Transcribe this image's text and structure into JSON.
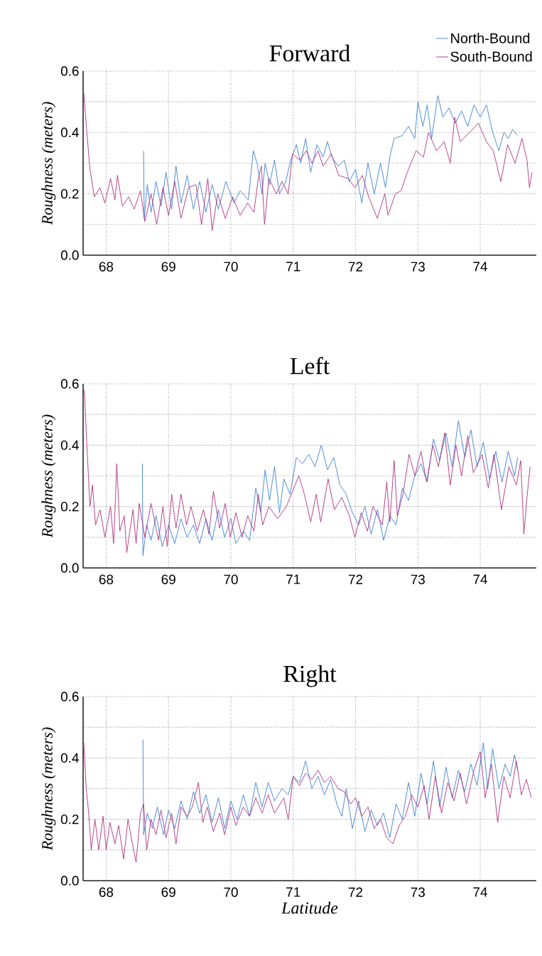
{
  "chart_data": [
    {
      "type": "line",
      "title": "Forward",
      "ylabel": "Roughness (meters)",
      "xlim": [
        67.63,
        74.9
      ],
      "ylim": [
        0,
        0.6
      ],
      "xticks": [
        68,
        69,
        70,
        71,
        72,
        73,
        74
      ],
      "yticks": [
        {
          "value": 0,
          "label": "0.0"
        },
        {
          "value": 0.1,
          "label": null
        },
        0.2,
        {
          "value": 0.3,
          "label": null
        },
        0.4,
        {
          "value": 0.5,
          "label": null
        },
        0.6
      ],
      "grid": true,
      "legend": "top right",
      "series": [
        {
          "name": "North-Bound",
          "color": "#3a7fd5",
          "x": [
            68.6,
            68.61,
            68.66,
            68.72,
            68.8,
            68.88,
            68.96,
            69.05,
            69.12,
            69.2,
            69.3,
            69.4,
            69.5,
            69.6,
            69.7,
            69.8,
            69.92,
            70.05,
            70.15,
            70.28,
            70.36,
            70.42,
            70.5,
            70.55,
            70.62,
            70.7,
            70.78,
            70.88,
            70.96,
            71.05,
            71.12,
            71.2,
            71.28,
            71.38,
            71.48,
            71.55,
            71.62,
            71.72,
            71.82,
            71.9,
            72.0,
            72.1,
            72.2,
            72.3,
            72.4,
            72.48,
            72.55,
            72.62,
            72.75,
            72.85,
            72.95,
            73.0,
            73.08,
            73.15,
            73.22,
            73.32,
            73.4,
            73.5,
            73.6,
            73.7,
            73.8,
            73.9,
            74.0,
            74.1,
            74.2,
            74.3,
            74.38,
            74.45,
            74.52,
            74.6
          ],
          "values": [
            0.34,
            0.12,
            0.23,
            0.14,
            0.24,
            0.16,
            0.27,
            0.15,
            0.29,
            0.17,
            0.26,
            0.15,
            0.24,
            0.14,
            0.23,
            0.15,
            0.24,
            0.17,
            0.21,
            0.18,
            0.34,
            0.3,
            0.2,
            0.3,
            0.23,
            0.31,
            0.2,
            0.24,
            0.31,
            0.36,
            0.3,
            0.38,
            0.27,
            0.36,
            0.32,
            0.37,
            0.32,
            0.29,
            0.31,
            0.24,
            0.28,
            0.17,
            0.3,
            0.2,
            0.3,
            0.22,
            0.32,
            0.38,
            0.39,
            0.42,
            0.38,
            0.5,
            0.42,
            0.49,
            0.38,
            0.52,
            0.45,
            0.48,
            0.43,
            0.47,
            0.42,
            0.49,
            0.45,
            0.49,
            0.4,
            0.34,
            0.4,
            0.38,
            0.41,
            0.39
          ]
        },
        {
          "name": "South-Bound",
          "color": "#b0307f",
          "x": [
            67.64,
            67.69,
            67.74,
            67.81,
            67.9,
            67.98,
            68.07,
            68.14,
            68.18,
            68.26,
            68.36,
            68.45,
            68.55,
            68.62,
            68.72,
            68.81,
            68.91,
            69.0,
            69.1,
            69.2,
            69.32,
            69.44,
            69.53,
            69.63,
            69.7,
            69.79,
            69.91,
            70.03,
            70.15,
            70.27,
            70.37,
            70.44,
            70.49,
            70.54,
            70.61,
            70.73,
            70.82,
            70.92,
            70.99,
            71.11,
            71.21,
            71.3,
            71.4,
            71.48,
            71.61,
            71.73,
            71.88,
            71.99,
            72.11,
            72.21,
            72.35,
            72.47,
            72.52,
            72.64,
            72.73,
            72.83,
            72.97,
            73.09,
            73.17,
            73.3,
            73.42,
            73.52,
            73.59,
            73.68,
            73.83,
            73.97,
            74.1,
            74.21,
            74.33,
            74.44,
            74.56,
            74.67,
            74.75,
            74.79,
            74.83
          ],
          "values": [
            0.53,
            0.4,
            0.28,
            0.19,
            0.22,
            0.17,
            0.25,
            0.18,
            0.26,
            0.16,
            0.19,
            0.15,
            0.21,
            0.11,
            0.2,
            0.1,
            0.22,
            0.13,
            0.24,
            0.12,
            0.22,
            0.23,
            0.1,
            0.25,
            0.08,
            0.2,
            0.12,
            0.19,
            0.13,
            0.17,
            0.14,
            0.25,
            0.29,
            0.1,
            0.25,
            0.2,
            0.24,
            0.2,
            0.33,
            0.31,
            0.34,
            0.3,
            0.34,
            0.29,
            0.33,
            0.26,
            0.25,
            0.22,
            0.26,
            0.19,
            0.12,
            0.2,
            0.13,
            0.2,
            0.21,
            0.27,
            0.34,
            0.32,
            0.4,
            0.34,
            0.37,
            0.3,
            0.45,
            0.37,
            0.4,
            0.43,
            0.37,
            0.34,
            0.24,
            0.36,
            0.3,
            0.38,
            0.31,
            0.22,
            0.27
          ]
        }
      ]
    },
    {
      "type": "line",
      "title": "Left",
      "ylabel": "Roughness (meters)",
      "xlim": [
        67.63,
        74.9
      ],
      "ylim": [
        0,
        0.6
      ],
      "xticks": [
        68,
        69,
        70,
        71,
        72,
        73,
        74
      ],
      "yticks": [
        {
          "value": 0,
          "label": "0.0"
        },
        {
          "value": 0.1,
          "label": null
        },
        0.2,
        {
          "value": 0.3,
          "label": null
        },
        0.4,
        {
          "value": 0.5,
          "label": null
        },
        0.6
      ],
      "grid": true,
      "series": [
        {
          "color": "#3a7fd5",
          "x": [
            68.58,
            68.59,
            68.65,
            68.72,
            68.8,
            68.9,
            69.0,
            69.1,
            69.2,
            69.3,
            69.4,
            69.5,
            69.6,
            69.7,
            69.8,
            69.9,
            70.0,
            70.08,
            70.2,
            70.3,
            70.4,
            70.48,
            70.55,
            70.62,
            70.7,
            70.78,
            70.85,
            70.95,
            71.05,
            71.15,
            71.25,
            71.35,
            71.45,
            71.55,
            71.65,
            71.75,
            71.85,
            71.95,
            72.05,
            72.15,
            72.25,
            72.35,
            72.45,
            72.55,
            72.65,
            72.75,
            72.85,
            72.95,
            73.05,
            73.15,
            73.25,
            73.35,
            73.45,
            73.55,
            73.65,
            73.75,
            73.85,
            73.95,
            74.05,
            74.15,
            74.25,
            74.35,
            74.45,
            74.55,
            74.6
          ],
          "values": [
            0.34,
            0.04,
            0.14,
            0.09,
            0.17,
            0.07,
            0.14,
            0.08,
            0.16,
            0.1,
            0.14,
            0.08,
            0.16,
            0.09,
            0.19,
            0.1,
            0.16,
            0.08,
            0.12,
            0.09,
            0.26,
            0.18,
            0.32,
            0.22,
            0.33,
            0.18,
            0.29,
            0.24,
            0.36,
            0.34,
            0.37,
            0.33,
            0.4,
            0.32,
            0.36,
            0.27,
            0.24,
            0.18,
            0.14,
            0.2,
            0.11,
            0.19,
            0.09,
            0.17,
            0.14,
            0.26,
            0.22,
            0.3,
            0.34,
            0.28,
            0.42,
            0.35,
            0.44,
            0.33,
            0.48,
            0.36,
            0.45,
            0.33,
            0.41,
            0.29,
            0.38,
            0.28,
            0.38,
            0.3,
            0.36
          ]
        },
        {
          "color": "#b0307f",
          "x": [
            67.65,
            67.69,
            67.74,
            67.78,
            67.83,
            67.9,
            67.98,
            68.07,
            68.12,
            68.17,
            68.22,
            68.29,
            68.33,
            68.43,
            68.48,
            68.53,
            68.62,
            68.72,
            68.84,
            68.91,
            68.98,
            69.05,
            69.12,
            69.2,
            69.29,
            69.36,
            69.46,
            69.56,
            69.65,
            69.72,
            69.82,
            69.91,
            69.99,
            70.08,
            70.18,
            70.27,
            70.37,
            70.44,
            70.51,
            70.61,
            70.75,
            70.89,
            70.99,
            71.09,
            71.18,
            71.28,
            71.37,
            71.44,
            71.56,
            71.66,
            71.78,
            71.9,
            71.99,
            72.09,
            72.19,
            72.28,
            72.43,
            72.5,
            72.55,
            72.62,
            72.67,
            72.76,
            72.86,
            72.95,
            73.05,
            73.14,
            73.24,
            73.33,
            73.43,
            73.52,
            73.61,
            73.7,
            73.8,
            73.89,
            74.03,
            74.13,
            74.22,
            74.34,
            74.46,
            74.58,
            74.65,
            74.7,
            74.75,
            74.8
          ],
          "values": [
            0.58,
            0.4,
            0.2,
            0.27,
            0.14,
            0.19,
            0.1,
            0.2,
            0.08,
            0.34,
            0.12,
            0.17,
            0.05,
            0.19,
            0.08,
            0.21,
            0.1,
            0.21,
            0.09,
            0.2,
            0.07,
            0.24,
            0.13,
            0.24,
            0.14,
            0.2,
            0.12,
            0.19,
            0.11,
            0.25,
            0.13,
            0.21,
            0.1,
            0.18,
            0.1,
            0.17,
            0.12,
            0.24,
            0.14,
            0.2,
            0.16,
            0.2,
            0.25,
            0.3,
            0.24,
            0.15,
            0.24,
            0.15,
            0.29,
            0.19,
            0.23,
            0.17,
            0.1,
            0.18,
            0.12,
            0.2,
            0.14,
            0.28,
            0.15,
            0.35,
            0.17,
            0.24,
            0.37,
            0.3,
            0.38,
            0.28,
            0.4,
            0.33,
            0.44,
            0.27,
            0.4,
            0.3,
            0.43,
            0.31,
            0.37,
            0.26,
            0.37,
            0.19,
            0.33,
            0.27,
            0.35,
            0.11,
            0.23,
            0.33
          ]
        }
      ]
    },
    {
      "type": "line",
      "title": "Right",
      "ylabel": "Roughness (meters)",
      "xlabel": "Latitude",
      "xlim": [
        67.63,
        74.9
      ],
      "ylim": [
        0,
        0.6
      ],
      "xticks": [
        68,
        69,
        70,
        71,
        72,
        73,
        74
      ],
      "yticks": [
        {
          "value": 0,
          "label": "0.0"
        },
        {
          "value": 0.1,
          "label": null
        },
        0.2,
        {
          "value": 0.3,
          "label": null
        },
        0.4,
        {
          "value": 0.5,
          "label": null
        },
        0.6
      ],
      "grid": true,
      "series": [
        {
          "color": "#3a7fd5",
          "x": [
            68.59,
            68.6,
            68.66,
            68.74,
            68.82,
            68.92,
            69.0,
            69.1,
            69.2,
            69.3,
            69.4,
            69.5,
            69.6,
            69.7,
            69.8,
            69.9,
            70.0,
            70.1,
            70.2,
            70.3,
            70.4,
            70.5,
            70.6,
            70.7,
            70.82,
            70.92,
            71.0,
            71.1,
            71.2,
            71.3,
            71.4,
            71.5,
            71.6,
            71.7,
            71.78,
            71.85,
            71.95,
            72.05,
            72.15,
            72.25,
            72.35,
            72.45,
            72.55,
            72.65,
            72.75,
            72.85,
            72.95,
            73.05,
            73.15,
            73.25,
            73.35,
            73.45,
            73.55,
            73.65,
            73.75,
            73.85,
            73.95,
            74.05,
            74.12,
            74.2,
            74.3,
            74.4,
            74.48,
            74.55,
            74.6
          ],
          "values": [
            0.46,
            0.15,
            0.22,
            0.17,
            0.24,
            0.15,
            0.23,
            0.17,
            0.26,
            0.2,
            0.29,
            0.22,
            0.28,
            0.19,
            0.27,
            0.17,
            0.26,
            0.2,
            0.28,
            0.21,
            0.32,
            0.24,
            0.32,
            0.26,
            0.3,
            0.28,
            0.34,
            0.32,
            0.39,
            0.3,
            0.34,
            0.28,
            0.33,
            0.25,
            0.21,
            0.3,
            0.17,
            0.26,
            0.16,
            0.23,
            0.18,
            0.22,
            0.14,
            0.25,
            0.2,
            0.32,
            0.21,
            0.35,
            0.25,
            0.39,
            0.24,
            0.37,
            0.27,
            0.36,
            0.29,
            0.38,
            0.31,
            0.45,
            0.3,
            0.43,
            0.3,
            0.38,
            0.34,
            0.41,
            0.36
          ]
        },
        {
          "color": "#b0307f",
          "x": [
            67.64,
            67.68,
            67.72,
            67.76,
            67.82,
            67.88,
            67.95,
            68.0,
            68.06,
            68.14,
            68.2,
            68.28,
            68.35,
            68.42,
            68.48,
            68.55,
            68.6,
            68.65,
            68.72,
            68.8,
            68.88,
            68.96,
            69.05,
            69.12,
            69.2,
            69.3,
            69.38,
            69.48,
            69.55,
            69.62,
            69.72,
            69.82,
            69.9,
            70.0,
            70.08,
            70.2,
            70.3,
            70.4,
            70.5,
            70.6,
            70.7,
            70.85,
            70.92,
            71.0,
            71.1,
            71.2,
            71.3,
            71.4,
            71.5,
            71.6,
            71.72,
            71.82,
            71.92,
            72.0,
            72.1,
            72.2,
            72.3,
            72.4,
            72.5,
            72.6,
            72.7,
            72.8,
            72.9,
            73.0,
            73.1,
            73.18,
            73.28,
            73.38,
            73.48,
            73.58,
            73.68,
            73.78,
            73.9,
            74.0,
            74.08,
            74.18,
            74.28,
            74.38,
            74.48,
            74.58,
            74.66,
            74.74,
            74.82
          ],
          "values": [
            0.45,
            0.3,
            0.22,
            0.1,
            0.2,
            0.1,
            0.21,
            0.1,
            0.19,
            0.12,
            0.18,
            0.07,
            0.2,
            0.12,
            0.06,
            0.22,
            0.25,
            0.1,
            0.2,
            0.15,
            0.23,
            0.14,
            0.22,
            0.12,
            0.24,
            0.21,
            0.24,
            0.32,
            0.19,
            0.24,
            0.16,
            0.22,
            0.15,
            0.24,
            0.18,
            0.24,
            0.21,
            0.27,
            0.22,
            0.28,
            0.22,
            0.27,
            0.2,
            0.34,
            0.31,
            0.35,
            0.33,
            0.36,
            0.32,
            0.34,
            0.3,
            0.29,
            0.25,
            0.27,
            0.21,
            0.24,
            0.17,
            0.2,
            0.14,
            0.12,
            0.18,
            0.21,
            0.28,
            0.24,
            0.31,
            0.2,
            0.34,
            0.22,
            0.32,
            0.26,
            0.35,
            0.25,
            0.36,
            0.42,
            0.27,
            0.38,
            0.19,
            0.34,
            0.27,
            0.39,
            0.28,
            0.33,
            0.27
          ]
        }
      ]
    }
  ]
}
